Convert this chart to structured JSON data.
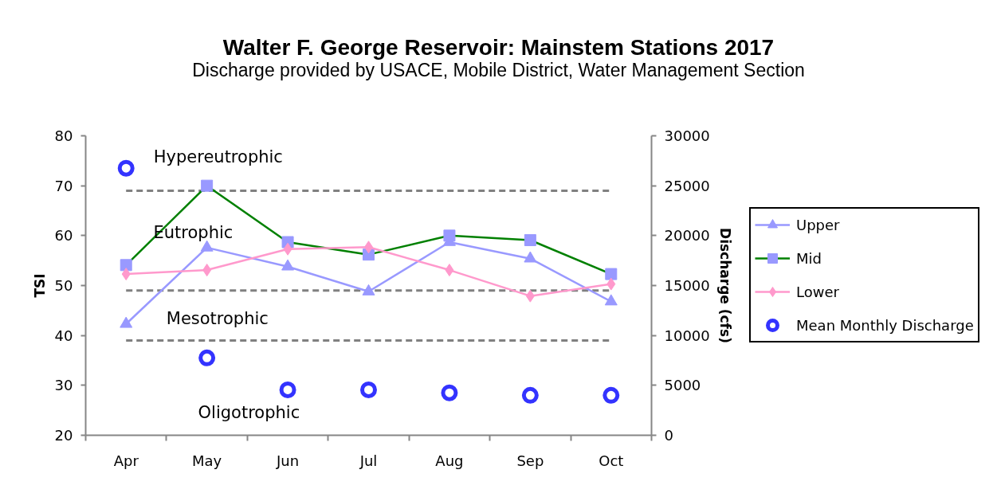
{
  "chart_data": {
    "type": "line",
    "title": "Walter F. George Reservoir: Mainstem Stations 2017",
    "subtitle": "Discharge provided by USACE, Mobile District, Water Management Section",
    "ylabel": "TSI",
    "y2label": "Discharge (cfs)",
    "categories": [
      "Apr",
      "May",
      "Jun",
      "Jul",
      "Aug",
      "Sep",
      "Oct"
    ],
    "series": [
      {
        "name": "Upper",
        "color": "#9999ff",
        "marker": "triangle",
        "values": [
          42.3,
          57.6,
          53.8,
          48.8,
          58.7,
          55.4,
          46.8
        ]
      },
      {
        "name": "Mid",
        "color": "#008000",
        "colors": [
          "#9999ff",
          "#9999ff",
          "#9999ff",
          "#9999ff",
          "#9999ff",
          "#9999ff",
          "#9999ff"
        ],
        "marker": "square",
        "values": [
          54.1,
          70.0,
          58.7,
          56.2,
          60.0,
          59.1,
          52.3
        ]
      },
      {
        "name": "Lower",
        "color": "#ff99cc",
        "marker": "diamond",
        "values": [
          52.3,
          53.1,
          57.3,
          57.7,
          53.1,
          47.9,
          50.3
        ]
      },
      {
        "name": "Mean Monthly Discharge",
        "type": "scatter",
        "axis": "y2",
        "color": "#3333ff",
        "marker": "circle",
        "values": [
          26750,
          7750,
          4550,
          4550,
          4250,
          4000,
          4000
        ]
      }
    ],
    "ylim": [
      20,
      80
    ],
    "yticks": [
      20,
      30,
      40,
      50,
      60,
      70,
      80
    ],
    "y2lim": [
      0,
      30000
    ],
    "y2ticks": [
      0,
      5000,
      10000,
      15000,
      20000,
      25000,
      30000
    ],
    "ref_lines": [
      {
        "axis": "y",
        "value": 69,
        "color": "#808080",
        "line_style": "dashed"
      },
      {
        "axis": "y",
        "value": 49,
        "color": "#808080",
        "line_style": "dashed"
      },
      {
        "axis": "y",
        "value": 39,
        "color": "#808080",
        "line_style": "dashed"
      }
    ],
    "annotations": [
      "Hypereutrophic",
      "Eutrophic",
      "Mesotrophic",
      "Oligotrophic"
    ],
    "grid": false,
    "legend": "right",
    "line_style": "solid"
  }
}
